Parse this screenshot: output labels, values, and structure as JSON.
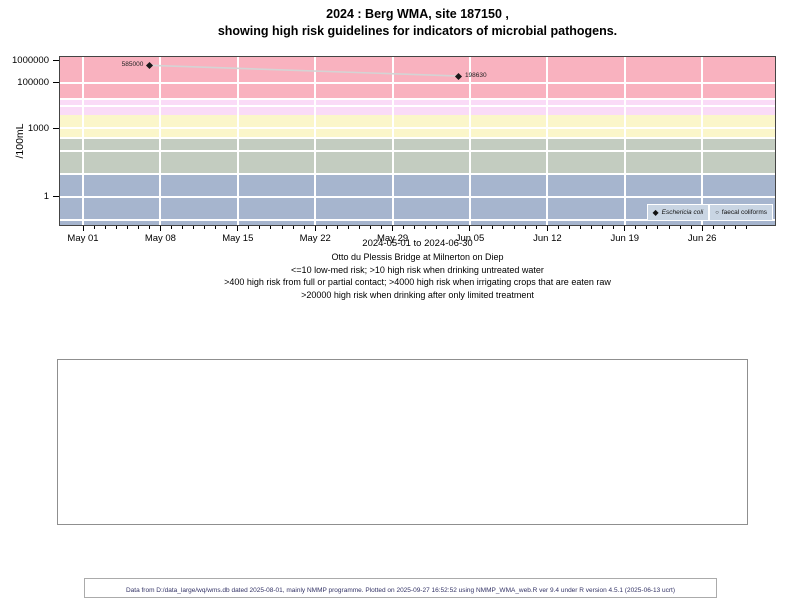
{
  "title": {
    "line1": "2024 : Berg WMA, site 187150 ,",
    "line2": "showing high risk guidelines for indicators of microbial pathogens."
  },
  "chart_data": {
    "type": "scatter",
    "title": "2024 : Berg WMA, site 187150, showing high risk guidelines for indicators of microbial pathogens.",
    "xlabel": "2024-05-01 to 2024-06-30",
    "ylabel": "/100mL",
    "y_scale": "log10",
    "ylim": [
      0.06,
      1350000
    ],
    "x_range": [
      "2024-05-01",
      "2024-06-30"
    ],
    "grid": "white gridlines on colored guideline bands",
    "legend_position": "bottom-right inside plot",
    "y_ticks": [
      {
        "label": "1000000",
        "value": 1000000
      },
      {
        "label": "100000",
        "value": 100000
      },
      {
        "label": "1000",
        "value": 1000
      },
      {
        "label": "1",
        "value": 1
      }
    ],
    "x_ticks": [
      {
        "label": "May 01",
        "date": "2024-05-01"
      },
      {
        "label": "May 08",
        "date": "2024-05-08"
      },
      {
        "label": "May 15",
        "date": "2024-05-15"
      },
      {
        "label": "May 22",
        "date": "2024-05-22"
      },
      {
        "label": "May 29",
        "date": "2024-05-29"
      },
      {
        "label": "Jun 05",
        "date": "2024-06-05"
      },
      {
        "label": "Jun 12",
        "date": "2024-06-12"
      },
      {
        "label": "Jun 19",
        "date": "2024-06-19"
      },
      {
        "label": "Jun 26",
        "date": "2024-06-26"
      }
    ],
    "h_gridlines": [
      100000,
      20000,
      10000,
      1000,
      400,
      100,
      10,
      1,
      0.1
    ],
    "guideline_bands": [
      {
        "from": 20000,
        "to": null,
        "color": "#f9b2bf"
      },
      {
        "from": 4000,
        "to": 20000,
        "color": "#fadbf7"
      },
      {
        "from": 400,
        "to": 4000,
        "color": "#fbf6ca"
      },
      {
        "from": 10,
        "to": 400,
        "color": "#c3ccc0"
      },
      {
        "from": null,
        "to": 10,
        "color": "#a6b5ce"
      }
    ],
    "series": [
      {
        "name": "Eschericia coli",
        "marker": "filled-diamond",
        "marker_color": "#1a1a1a",
        "line_color": "#d4d4d4",
        "points": [
          {
            "date": "2024-05-07",
            "value": 585000,
            "label": "585000",
            "label_side": "left"
          },
          {
            "date": "2024-06-04",
            "value": 198630,
            "label": "198630",
            "label_side": "right"
          }
        ]
      },
      {
        "name": "faecal coliforms",
        "marker": "open-circle",
        "points": []
      }
    ],
    "legend": [
      {
        "label": "Eschericia coli",
        "marker": "filled-diamond"
      },
      {
        "label": "faecal coliforms",
        "marker": "open-circle"
      }
    ]
  },
  "subtitle_lines": [
    "Otto du Plessis Bridge at Milnerton on Diep",
    "<=10 low-med risk; >10 high risk when drinking untreated water",
    ">400 high risk from full or partial contact; >4000 high risk when irrigating crops that are eaten raw",
    ">20000 high risk when drinking after only limited treatment"
  ],
  "footer": {
    "text": "Data from D:/data_large/wq/wms.db dated 2025-08-01, mainly NMMP programme. Plotted on 2025-09-27 16:52:52 using NMMP_WMA_web.R ver 9.4 under R version 4.5.1 (2025-06-13 ucrt)"
  }
}
